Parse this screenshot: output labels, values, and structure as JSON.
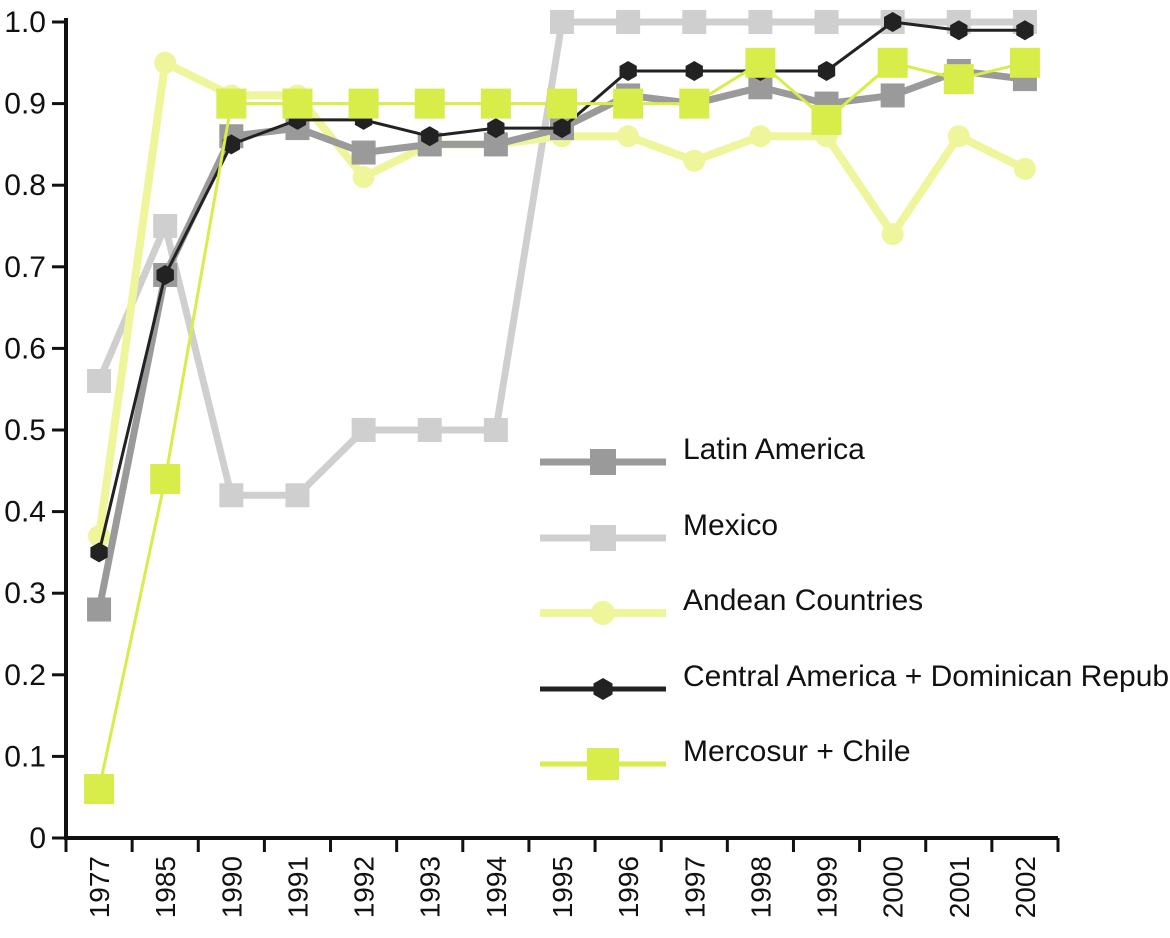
{
  "chart_data": {
    "type": "line",
    "title": "",
    "xlabel": "",
    "ylabel": "",
    "ylim": [
      0,
      1.0
    ],
    "yticks": [
      "0",
      "0.1",
      "0.2",
      "0.3",
      "0.4",
      "0.5",
      "0.6",
      "0.7",
      "0.8",
      "0.9",
      "1.0"
    ],
    "categories": [
      "1977",
      "1985",
      "1990",
      "1991",
      "1992",
      "1993",
      "1994",
      "1995",
      "1996",
      "1997",
      "1998",
      "1999",
      "2000",
      "2001",
      "2002"
    ],
    "grid": false,
    "legend_position": "center-right",
    "series": [
      {
        "name": "Latin America",
        "color": "#9a9a9a",
        "marker": "square",
        "values": [
          0.28,
          0.69,
          0.86,
          0.87,
          0.84,
          0.85,
          0.85,
          0.87,
          0.91,
          0.9,
          0.92,
          0.9,
          0.91,
          0.94,
          0.93
        ]
      },
      {
        "name": "Mexico",
        "color": "#cfcfcf",
        "marker": "square",
        "values": [
          0.56,
          0.75,
          0.42,
          0.42,
          0.5,
          0.5,
          0.5,
          1.0,
          1.0,
          1.0,
          1.0,
          1.0,
          1.0,
          1.0,
          1.0
        ]
      },
      {
        "name": "Andean Countries",
        "color": "#eef59a",
        "marker": "circle",
        "values": [
          0.37,
          0.95,
          0.91,
          0.91,
          0.81,
          0.85,
          0.85,
          0.86,
          0.86,
          0.83,
          0.86,
          0.86,
          0.74,
          0.86,
          0.82
        ]
      },
      {
        "name": "Central America + Dominican Republic",
        "color": "#222222",
        "marker": "hexagon",
        "values": [
          0.35,
          0.69,
          0.85,
          0.88,
          0.88,
          0.86,
          0.87,
          0.87,
          0.94,
          0.94,
          0.94,
          0.94,
          1.0,
          0.99,
          0.99
        ]
      },
      {
        "name": "Mercosur + Chile",
        "color": "#d8ec4a",
        "marker": "square",
        "values": [
          0.06,
          0.44,
          0.9,
          0.9,
          0.9,
          0.9,
          0.9,
          0.9,
          0.9,
          0.9,
          0.95,
          0.88,
          0.95,
          0.93,
          0.95
        ]
      }
    ]
  }
}
